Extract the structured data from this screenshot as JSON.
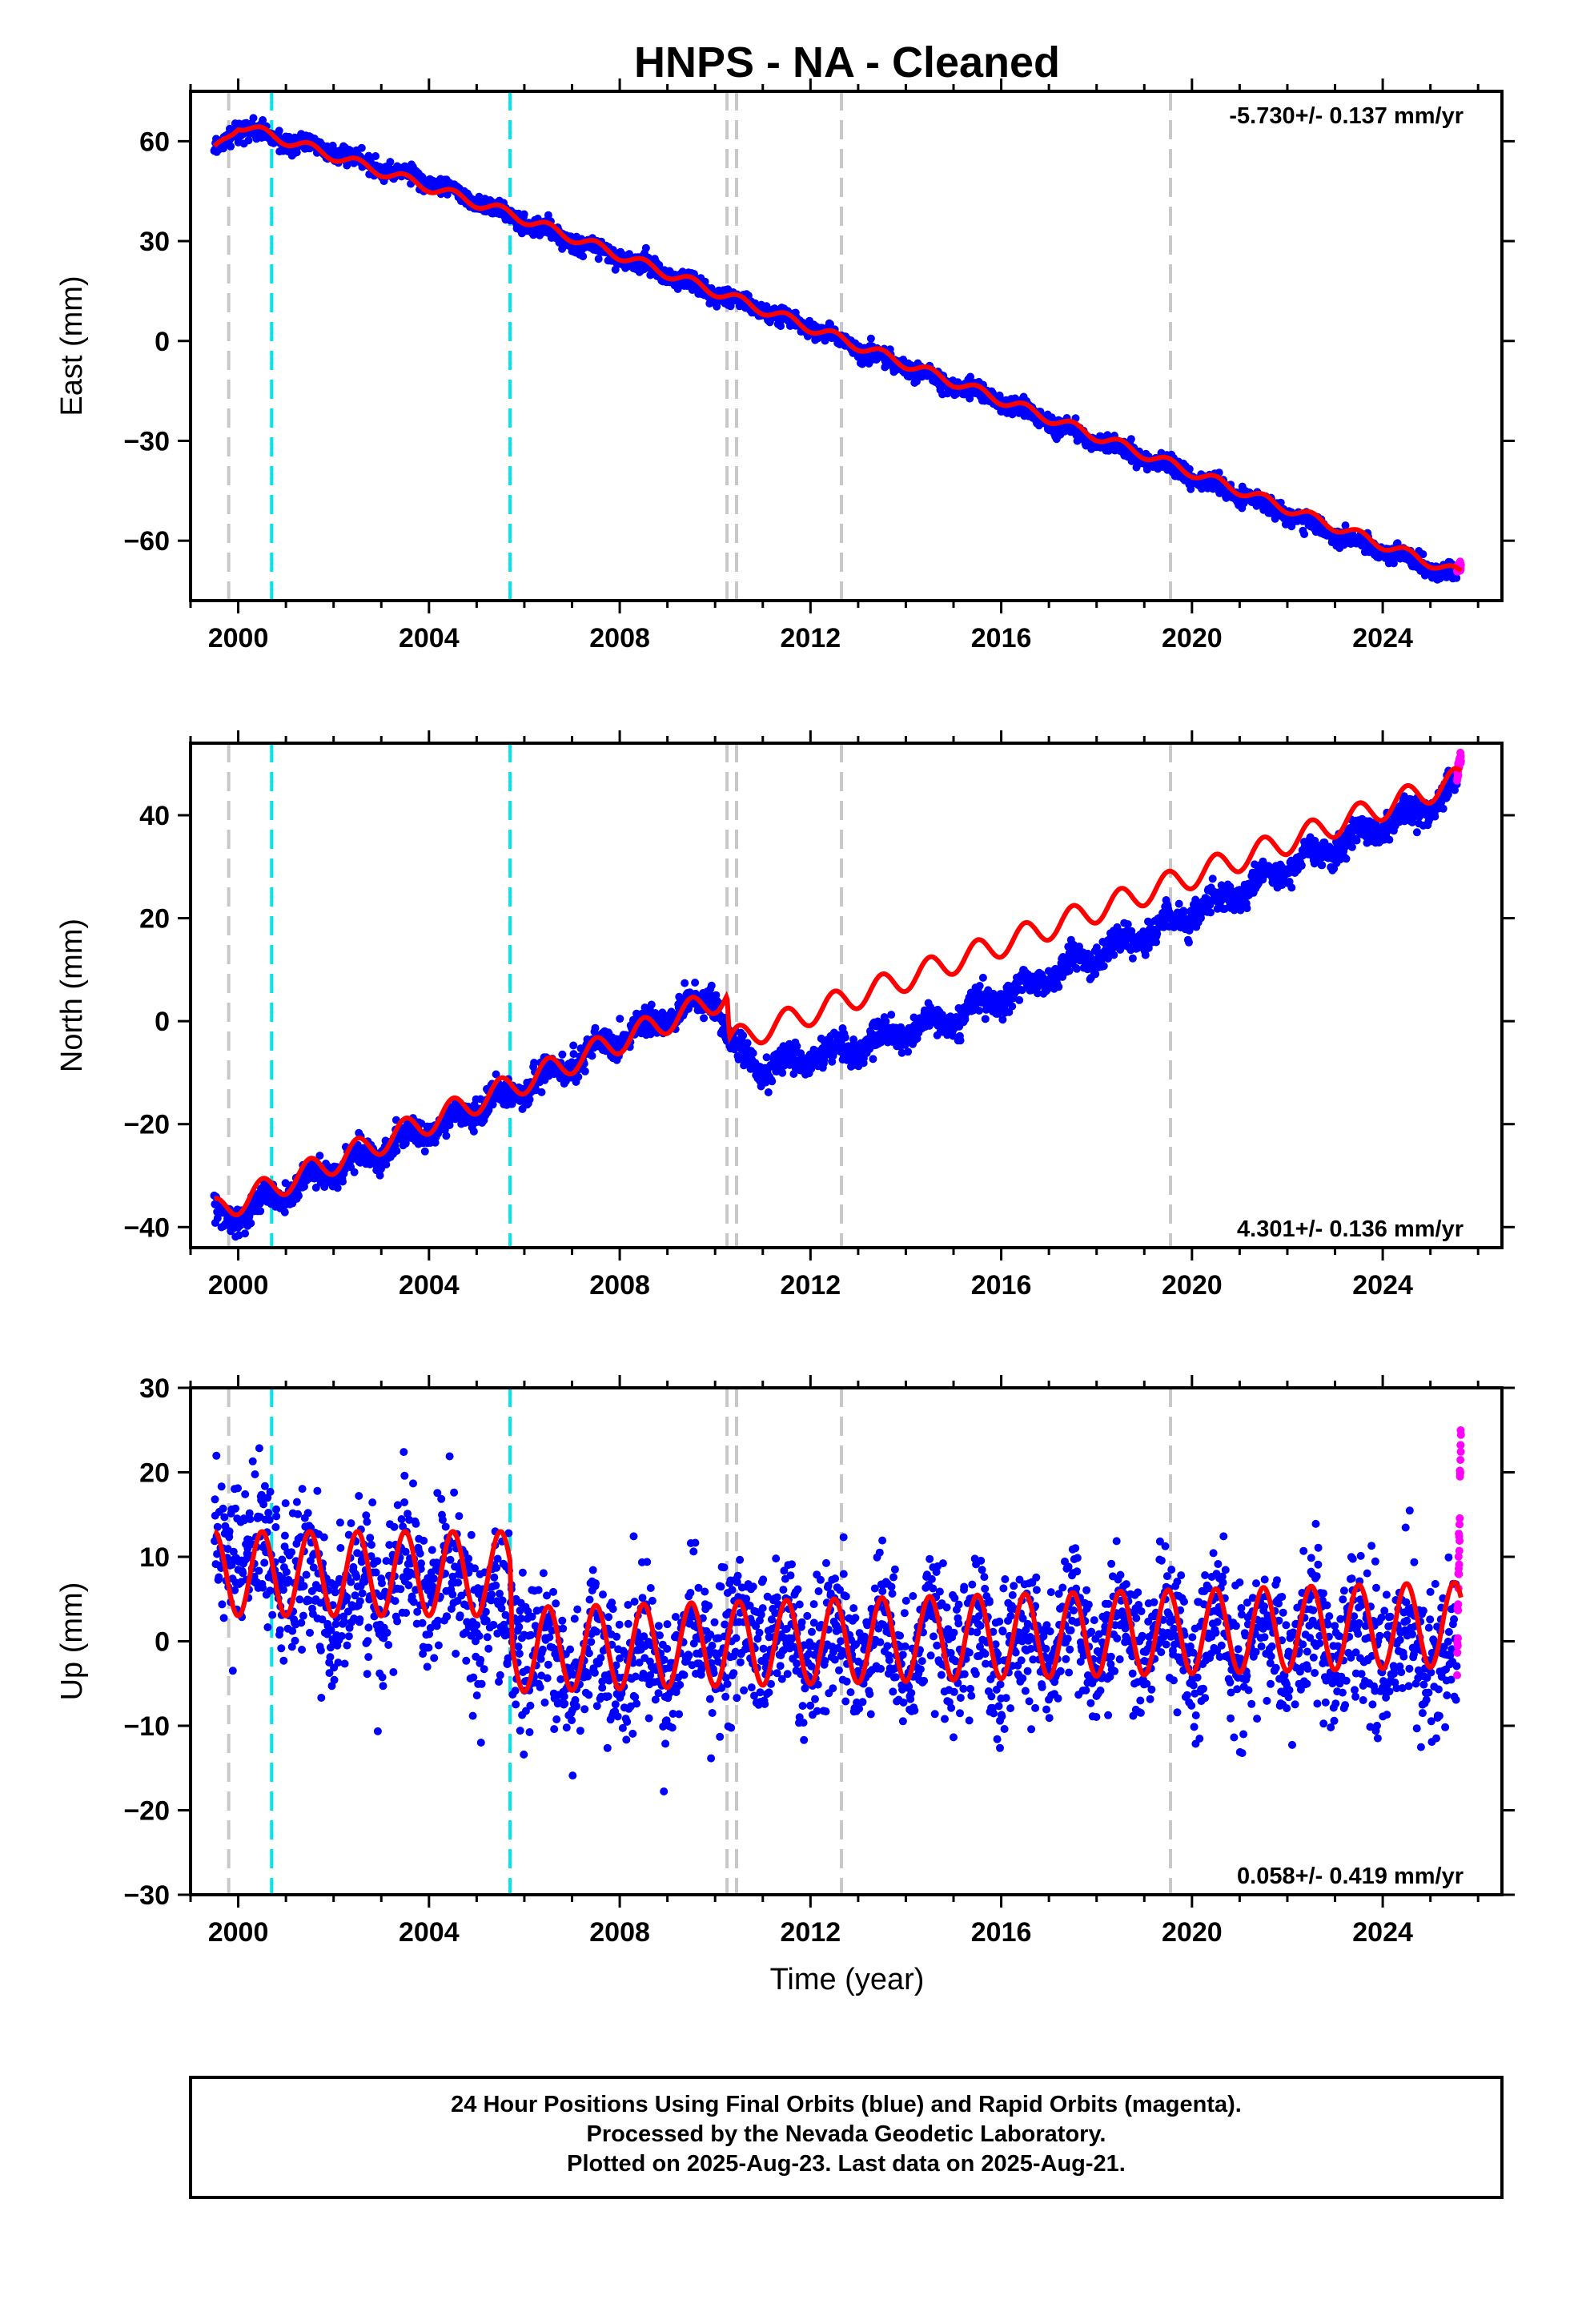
{
  "title": "HNPS  - NA - Cleaned",
  "xlabel": "Time (year)",
  "footer": {
    "line1": "24 Hour Positions Using Final Orbits (blue) and Rapid Orbits (magenta).",
    "line2": "Processed by the Nevada Geodetic Laboratory.",
    "line3": "Plotted on 2025-Aug-23. Last data on 2025-Aug-21."
  },
  "colors": {
    "final_points": "#0000ff",
    "rapid_points": "#ff00ff",
    "model_line": "#ff0000",
    "equipment_change": "#c8c8c8",
    "earthquake": "#00e5ee"
  },
  "chart_data": [
    {
      "type": "scatter",
      "component": "East",
      "ylabel": "East (mm)",
      "rate_label": "-5.730+/- 0.137 mm/yr",
      "xlim": [
        1999.0,
        2026.5
      ],
      "ylim": [
        -78,
        75
      ],
      "xticks": [
        2000,
        2004,
        2008,
        2012,
        2016,
        2020,
        2024
      ],
      "yticks": [
        -60,
        -30,
        0,
        30,
        60
      ],
      "series": [
        {
          "kind": "final_orbits",
          "x": [
            1999.5,
            2000.0,
            2001.0,
            2002.0,
            2003.0,
            2004.0,
            2005.0,
            2006.0,
            2007.0,
            2008.0,
            2009.0,
            2010.0,
            2011.0,
            2012.0,
            2013.0,
            2014.0,
            2015.0,
            2016.0,
            2017.0,
            2018.0,
            2019.0,
            2020.0,
            2021.0,
            2022.0,
            2023.0,
            2024.0,
            2025.0,
            2025.55
          ],
          "y": [
            57,
            64,
            60,
            57,
            52,
            48,
            42,
            36,
            30,
            25,
            20,
            14,
            9,
            4,
            -2,
            -8,
            -13,
            -18,
            -24,
            -30,
            -35,
            -41,
            -46,
            -52,
            -58,
            -63,
            -68,
            -70
          ]
        },
        {
          "kind": "rapid_orbits",
          "x": [
            2025.56,
            2025.6,
            2025.64
          ],
          "y": [
            -69,
            -68,
            -67
          ]
        },
        {
          "kind": "model",
          "x": [
            1999.5,
            2000.0,
            2005.75,
            2025.64
          ],
          "y": [
            57,
            65,
            38,
            -70
          ]
        }
      ],
      "vlines_gray": [
        1999.8,
        2010.25,
        2010.45,
        2012.65,
        2019.55
      ],
      "vlines_cyan": [
        2000.7,
        2005.7
      ]
    },
    {
      "type": "scatter",
      "component": "North",
      "ylabel": "North (mm)",
      "rate_label": "4.301+/- 0.136 mm/yr",
      "xlim": [
        1999.0,
        2026.5
      ],
      "ylim": [
        -44,
        54
      ],
      "xticks": [
        2000,
        2004,
        2008,
        2012,
        2016,
        2020,
        2024
      ],
      "yticks": [
        -40,
        -20,
        0,
        20,
        40
      ],
      "series": [
        {
          "kind": "final_orbits",
          "x": [
            1999.5,
            2000.0,
            2001.0,
            2002.0,
            2003.0,
            2004.0,
            2005.0,
            2006.0,
            2007.0,
            2008.0,
            2009.0,
            2010.0,
            2010.3,
            2011.0,
            2012.0,
            2013.0,
            2014.0,
            2015.0,
            2016.0,
            2017.0,
            2018.0,
            2019.0,
            2020.0,
            2021.0,
            2022.0,
            2023.0,
            2024.0,
            2025.0,
            2025.55
          ],
          "y": [
            -37,
            -38,
            -33,
            -29,
            -25,
            -21,
            -17,
            -13,
            -8,
            -3,
            1,
            5,
            -5,
            -9,
            -7,
            -5,
            -2,
            1,
            5,
            9,
            13,
            17,
            21,
            25,
            30,
            34,
            38,
            42,
            46
          ]
        },
        {
          "kind": "rapid_orbits",
          "x": [
            2025.56,
            2025.6,
            2025.64
          ],
          "y": [
            48,
            50,
            51
          ]
        },
        {
          "kind": "model",
          "x": [
            1999.5,
            2010.25,
            2010.3,
            2025.64
          ],
          "y": [
            -37,
            5,
            -4,
            47
          ]
        }
      ],
      "vlines_gray": [
        1999.8,
        2010.25,
        2010.45,
        2012.65,
        2019.55
      ],
      "vlines_cyan": [
        2000.7,
        2005.7
      ]
    },
    {
      "type": "scatter",
      "component": "Up",
      "ylabel": "Up (mm)",
      "rate_label": "0.058+/- 0.419 mm/yr",
      "xlim": [
        1999.0,
        2026.5
      ],
      "ylim": [
        -30,
        30
      ],
      "xticks": [
        2000,
        2004,
        2008,
        2012,
        2016,
        2020,
        2024
      ],
      "yticks": [
        -30,
        -20,
        -10,
        0,
        10,
        20,
        30
      ],
      "series": [
        {
          "kind": "final_orbits",
          "x": [
            1999.5,
            2000.0,
            2001.0,
            2002.0,
            2003.0,
            2004.0,
            2005.0,
            2005.8,
            2007.0,
            2008.0,
            2009.0,
            2010.0,
            2011.0,
            2012.0,
            2013.0,
            2014.0,
            2015.0,
            2016.0,
            2017.0,
            2018.0,
            2019.0,
            2020.0,
            2021.0,
            2022.0,
            2023.0,
            2024.0,
            2025.0,
            2025.55
          ],
          "y": [
            9,
            12,
            8,
            4,
            6,
            8,
            5,
            0,
            -3,
            -2,
            -2,
            -1,
            0,
            0,
            0,
            0,
            0,
            0,
            0,
            0,
            0,
            0,
            0,
            0,
            0,
            0,
            -1,
            -2
          ]
        },
        {
          "kind": "rapid_orbits",
          "x": [
            2025.56,
            2025.6,
            2025.64
          ],
          "y": [
            -2,
            10,
            25
          ]
        },
        {
          "kind": "model",
          "x": [
            1999.5,
            2005.7,
            2005.75,
            2025.64
          ],
          "y": [
            8,
            8,
            -1,
            2
          ]
        }
      ],
      "vlines_gray": [
        1999.8,
        2010.25,
        2010.45,
        2012.65,
        2019.55
      ],
      "vlines_cyan": [
        2000.7,
        2005.7
      ]
    }
  ]
}
